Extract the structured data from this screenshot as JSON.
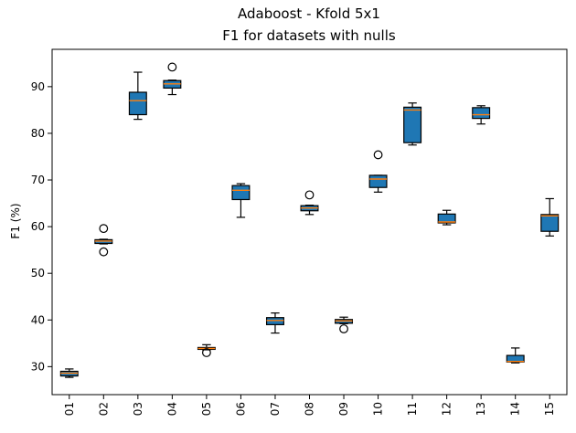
{
  "chart_data": {
    "type": "boxplot",
    "title": "Adaboost - Kfold 5x1",
    "subtitle": "F1 for datasets with nulls",
    "xlabel": "",
    "ylabel": "F1 (%)",
    "ylim": [
      24,
      98
    ],
    "yticks": [
      30,
      40,
      50,
      60,
      70,
      80,
      90
    ],
    "grid": false,
    "box_color": "#1f77b4",
    "median_color": "#ff7f0e",
    "categories": [
      "01",
      "02",
      "03",
      "04",
      "05",
      "06",
      "07",
      "08",
      "09",
      "10",
      "11",
      "12",
      "13",
      "14",
      "15"
    ],
    "boxes": [
      {
        "label": "01",
        "whislo": 27.7,
        "q1": 28.0,
        "med": 28.6,
        "q3": 29.0,
        "whishi": 29.5,
        "fliers": []
      },
      {
        "label": "02",
        "whislo": 56.3,
        "q1": 56.4,
        "med": 56.9,
        "q3": 57.2,
        "whishi": 57.3,
        "fliers": [
          59.6,
          54.6
        ]
      },
      {
        "label": "03",
        "whislo": 83.0,
        "q1": 84.0,
        "med": 87.0,
        "q3": 88.8,
        "whishi": 93.1,
        "fliers": []
      },
      {
        "label": "04",
        "whislo": 88.3,
        "q1": 89.7,
        "med": 90.6,
        "q3": 91.3,
        "whishi": 91.4,
        "fliers": [
          94.2
        ]
      },
      {
        "label": "05",
        "whislo": 33.6,
        "q1": 33.7,
        "med": 33.9,
        "q3": 34.1,
        "whishi": 34.7,
        "fliers": [
          33.0
        ]
      },
      {
        "label": "06",
        "whislo": 62.0,
        "q1": 65.8,
        "med": 67.8,
        "q3": 68.8,
        "whishi": 69.2,
        "fliers": []
      },
      {
        "label": "07",
        "whislo": 37.2,
        "q1": 39.0,
        "med": 39.9,
        "q3": 40.5,
        "whishi": 41.5,
        "fliers": []
      },
      {
        "label": "08",
        "whislo": 62.6,
        "q1": 63.4,
        "med": 64.0,
        "q3": 64.5,
        "whishi": 64.6,
        "fliers": [
          66.8
        ]
      },
      {
        "label": "09",
        "whislo": 39.2,
        "q1": 39.3,
        "med": 39.8,
        "q3": 40.1,
        "whishi": 40.6,
        "fliers": [
          38.1
        ]
      },
      {
        "label": "10",
        "whislo": 67.4,
        "q1": 68.4,
        "med": 70.2,
        "q3": 71.0,
        "whishi": 71.0,
        "fliers": [
          75.4
        ]
      },
      {
        "label": "11",
        "whislo": 77.5,
        "q1": 78.0,
        "med": 85.0,
        "q3": 85.6,
        "whishi": 86.5,
        "fliers": []
      },
      {
        "label": "12",
        "whislo": 60.4,
        "q1": 60.8,
        "med": 61.0,
        "q3": 62.7,
        "whishi": 63.5,
        "fliers": []
      },
      {
        "label": "13",
        "whislo": 82.0,
        "q1": 83.2,
        "med": 84.0,
        "q3": 85.5,
        "whishi": 85.9,
        "fliers": []
      },
      {
        "label": "14",
        "whislo": 30.8,
        "q1": 31.0,
        "med": 31.1,
        "q3": 32.4,
        "whishi": 34.0,
        "fliers": []
      },
      {
        "label": "15",
        "whislo": 58.0,
        "q1": 59.0,
        "med": 62.3,
        "q3": 62.6,
        "whishi": 66.0,
        "fliers": []
      }
    ]
  }
}
